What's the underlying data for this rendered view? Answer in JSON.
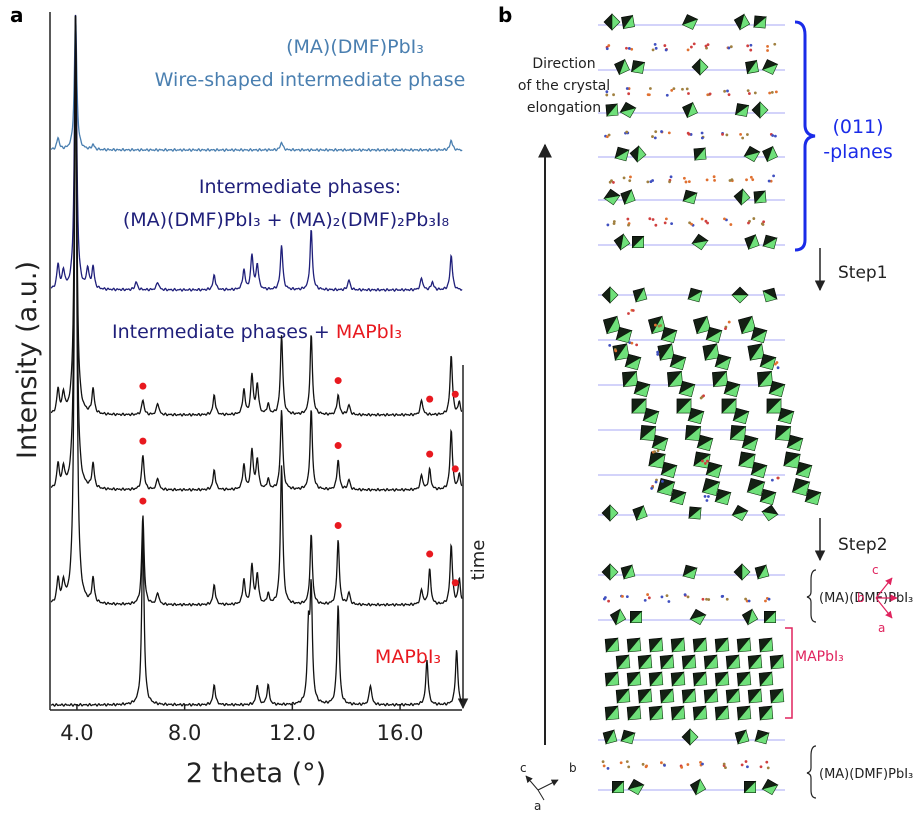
{
  "panel_a": {
    "label": "a",
    "y_label": "Intensity (a.u.)",
    "x_label": "2 theta (°)",
    "time_label": "time",
    "xlim": [
      3.0,
      18.3
    ],
    "xticks": [
      {
        "value": 4,
        "label": "4.0"
      },
      {
        "value": 8,
        "label": "8.0"
      },
      {
        "value": 12,
        "label": "12.0"
      },
      {
        "value": 16,
        "label": "16.0"
      }
    ],
    "annotations": {
      "wire": [
        "(MA)(DMF)PbI₃",
        "Wire-shaped intermediate phase"
      ],
      "intermediate": [
        "Intermediate phases:",
        "(MA)(DMF)PbI₃ + (MA)₂(DMF)₂Pb₃I₈"
      ],
      "mixed": {
        "text": "Intermediate phases +",
        "highlight": "MAPbI₃"
      },
      "mapbi3": "MAPbI₃"
    },
    "traces": [
      {
        "color": "#4a7fb0",
        "peaks": [
          [
            3.3,
            12
          ],
          [
            3.95,
            135
          ],
          [
            4.6,
            5
          ],
          [
            11.6,
            8
          ],
          [
            17.9,
            10
          ]
        ]
      },
      {
        "color": "#1f1f7a",
        "peaks": [
          [
            3.3,
            25
          ],
          [
            3.5,
            18
          ],
          [
            3.95,
            275
          ],
          [
            4.4,
            20
          ],
          [
            4.6,
            22
          ],
          [
            6.2,
            8
          ],
          [
            7.0,
            8
          ],
          [
            9.1,
            15
          ],
          [
            10.2,
            20
          ],
          [
            10.5,
            35
          ],
          [
            10.7,
            25
          ],
          [
            11.6,
            45
          ],
          [
            12.7,
            60
          ],
          [
            14.1,
            10
          ],
          [
            16.8,
            12
          ],
          [
            17.2,
            8
          ],
          [
            17.9,
            35
          ]
        ]
      },
      {
        "color": "#111111",
        "markers": [
          6.45,
          13.7,
          17.1,
          18.05
        ],
        "peaks": [
          [
            3.3,
            25
          ],
          [
            3.5,
            20
          ],
          [
            3.95,
            400
          ],
          [
            4.6,
            25
          ],
          [
            6.45,
            15
          ],
          [
            7.0,
            12
          ],
          [
            9.1,
            20
          ],
          [
            10.2,
            25
          ],
          [
            10.5,
            40
          ],
          [
            10.7,
            30
          ],
          [
            11.1,
            10
          ],
          [
            11.6,
            80
          ],
          [
            12.7,
            80
          ],
          [
            13.7,
            20
          ],
          [
            14.1,
            10
          ],
          [
            16.8,
            15
          ],
          [
            17.9,
            60
          ],
          [
            18.2,
            12
          ]
        ]
      },
      {
        "color": "#111111",
        "markers": [
          6.45,
          13.7,
          17.1,
          18.05
        ],
        "peaks": [
          [
            3.3,
            25
          ],
          [
            3.5,
            20
          ],
          [
            3.95,
            475
          ],
          [
            4.6,
            25
          ],
          [
            6.45,
            35
          ],
          [
            7.0,
            12
          ],
          [
            9.1,
            20
          ],
          [
            10.2,
            25
          ],
          [
            10.5,
            40
          ],
          [
            10.7,
            30
          ],
          [
            11.1,
            10
          ],
          [
            11.6,
            80
          ],
          [
            12.7,
            80
          ],
          [
            13.7,
            30
          ],
          [
            14.1,
            10
          ],
          [
            16.8,
            15
          ],
          [
            17.1,
            20
          ],
          [
            17.9,
            60
          ],
          [
            18.2,
            15
          ]
        ]
      },
      {
        "color": "#111111",
        "markers": [
          6.45,
          13.7,
          17.1,
          18.05
        ],
        "peaks": [
          [
            3.3,
            25
          ],
          [
            3.5,
            20
          ],
          [
            3.95,
            590
          ],
          [
            4.6,
            25
          ],
          [
            6.45,
            90
          ],
          [
            7.0,
            12
          ],
          [
            9.1,
            20
          ],
          [
            10.2,
            25
          ],
          [
            10.5,
            40
          ],
          [
            10.7,
            30
          ],
          [
            11.1,
            10
          ],
          [
            11.6,
            140
          ],
          [
            12.7,
            70
          ],
          [
            13.7,
            65
          ],
          [
            14.1,
            12
          ],
          [
            16.8,
            15
          ],
          [
            17.1,
            35
          ],
          [
            17.9,
            60
          ],
          [
            18.2,
            25
          ]
        ]
      },
      {
        "color": "#111111",
        "peaks": [
          [
            6.45,
            175
          ],
          [
            9.1,
            20
          ],
          [
            10.7,
            20
          ],
          [
            11.1,
            20
          ],
          [
            12.6,
            70
          ],
          [
            12.7,
            110
          ],
          [
            13.7,
            100
          ],
          [
            14.9,
            20
          ],
          [
            17.0,
            45
          ],
          [
            18.1,
            55
          ]
        ]
      }
    ]
  },
  "panel_b": {
    "label": "b",
    "direction_label": [
      "Direction",
      "of the crystal",
      "elongation"
    ],
    "planes_label": [
      "(011)",
      "-planes"
    ],
    "step1": "Step1",
    "step2": "Step2",
    "phase_labels": [
      "(MA)(DMF)PbI₃",
      "MAPbI₃",
      "(MA)(DMF)PbI₃"
    ],
    "axes_small": [
      "c",
      "b",
      "a"
    ],
    "axes_red": [
      "c",
      "b",
      "a"
    ]
  }
}
